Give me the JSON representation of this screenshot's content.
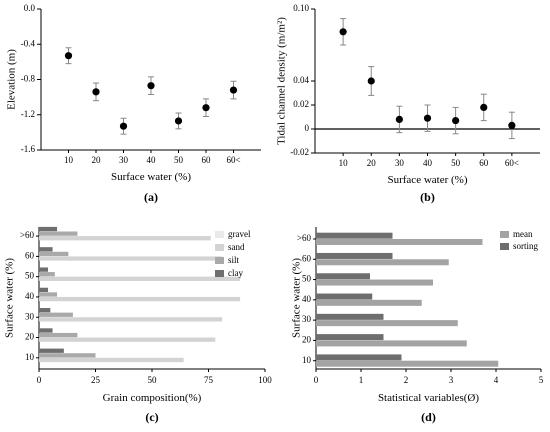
{
  "figure": {
    "panels": [
      {
        "label": "(a)"
      },
      {
        "label": "(b)"
      },
      {
        "label": "(c)"
      },
      {
        "label": "(d)"
      }
    ]
  },
  "chart_data": [
    {
      "type": "scatter",
      "title": "",
      "xlabel": "Surface water (%)",
      "ylabel": "Elevation (m)",
      "categories": [
        "10",
        "20",
        "30",
        "40",
        "50",
        "60",
        "60<"
      ],
      "values": [
        -0.53,
        -0.94,
        -1.33,
        -0.87,
        -1.27,
        -1.12,
        -0.92
      ],
      "errors": [
        0.09,
        0.1,
        0.09,
        0.1,
        0.09,
        0.1,
        0.1
      ],
      "ylim": [
        -1.6,
        0.0
      ],
      "yticks": [
        "-1.6",
        "-1.2",
        "-0.8",
        "-0.4",
        "0.0"
      ],
      "ytick_values": [
        -1.6,
        -1.2,
        -0.8,
        -0.4,
        0.0
      ],
      "grid": false,
      "colors": {
        "marker": "#000000",
        "error": "#888888"
      }
    },
    {
      "type": "scatter",
      "title": "",
      "xlabel": "Surface water (%)",
      "ylabel": "Tidal channel density (m/m²)",
      "categories": [
        "10",
        "20",
        "30",
        "40",
        "50",
        "60",
        "60<"
      ],
      "values": [
        0.081,
        0.04,
        0.008,
        0.009,
        0.007,
        0.018,
        0.003
      ],
      "errors": [
        0.011,
        0.012,
        0.011,
        0.011,
        0.011,
        0.011,
        0.011
      ],
      "ylim": [
        -0.02,
        0.1
      ],
      "yticks": [
        "-0.02",
        "0",
        "0.02",
        "0.04",
        "0.10"
      ],
      "ytick_values": [
        -0.02,
        0.0,
        0.02,
        0.04,
        0.1
      ],
      "reference_line": 0,
      "grid": false,
      "colors": {
        "marker": "#000000",
        "error": "#888888"
      }
    },
    {
      "type": "bar",
      "orientation": "horizontal",
      "title": "",
      "xlabel": "Grain composition(%)",
      "ylabel": "Surface water (%)",
      "categories": [
        "10",
        "20",
        "30",
        "40",
        "50",
        "60",
        ">60"
      ],
      "xlim": [
        0,
        100
      ],
      "xticks": [
        "0",
        "25",
        "50",
        "75",
        "100"
      ],
      "xtick_values": [
        0,
        25,
        50,
        75,
        100
      ],
      "series": [
        {
          "name": "gravel",
          "values": [
            0,
            0,
            0,
            0,
            0,
            0,
            0
          ],
          "color": "#e9e9e9"
        },
        {
          "name": "sand",
          "values": [
            64,
            78,
            81,
            89,
            89,
            81,
            76
          ],
          "color": "#d3d3d3"
        },
        {
          "name": "silt",
          "values": [
            25,
            17,
            15,
            8,
            7,
            13,
            17
          ],
          "color": "#a9a9a9"
        },
        {
          "name": "clay",
          "values": [
            11,
            6,
            5,
            4,
            4,
            6,
            8
          ],
          "color": "#6e6e6e"
        }
      ],
      "legend": "top-right",
      "grid": false
    },
    {
      "type": "bar",
      "orientation": "horizontal",
      "title": "",
      "xlabel": "Statistical variables(Ø)",
      "ylabel": "Surface water (%)",
      "categories": [
        "10",
        "20",
        "30",
        "40",
        "50",
        "60",
        ">60"
      ],
      "xlim": [
        0,
        5
      ],
      "xticks": [
        "0",
        "1",
        "2",
        "3",
        "4",
        "5"
      ],
      "xtick_values": [
        0,
        1,
        2,
        3,
        4,
        5
      ],
      "series": [
        {
          "name": "mean",
          "values": [
            4.05,
            3.35,
            3.15,
            2.35,
            2.6,
            2.95,
            3.7
          ],
          "color": "#a3a3a3"
        },
        {
          "name": "sorting",
          "values": [
            1.9,
            1.5,
            1.5,
            1.25,
            1.2,
            1.7,
            1.7
          ],
          "color": "#6e6e6e"
        }
      ],
      "legend": "top-right",
      "grid": false
    }
  ]
}
